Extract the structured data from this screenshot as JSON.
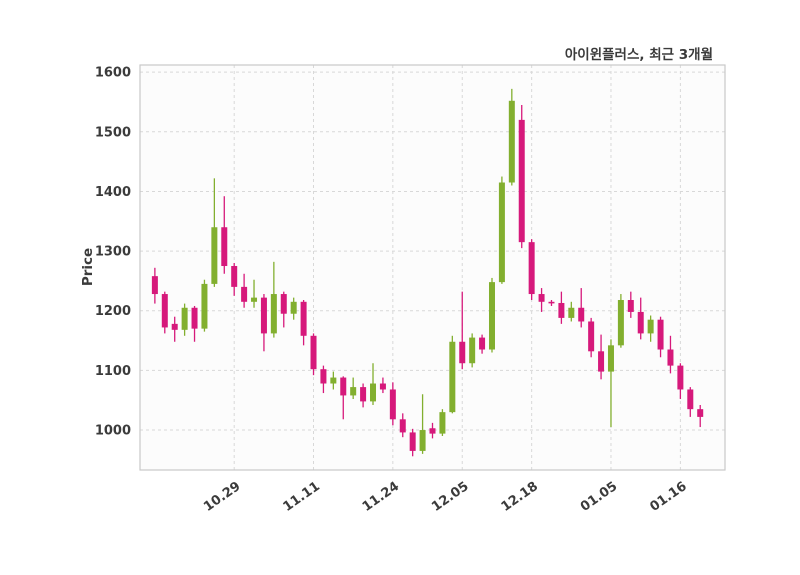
{
  "figure": {
    "title": "아이윈플러스, 최근 3개월",
    "ylabel": "Price"
  },
  "chart_data": {
    "type": "candlestick",
    "title": "아이윈플러스, 최근 3개월",
    "subtitle": "",
    "xlabel": "",
    "ylabel": "Price",
    "ylim": [
      933,
      1612
    ],
    "yticks": [
      1000,
      1100,
      1200,
      1300,
      1400,
      1500,
      1600
    ],
    "grid": "dashed",
    "legend": "none",
    "up_color": "#82af2f",
    "down_color": "#d6197b",
    "grid_color": "#d8d8d8",
    "border_color": "#c9c9c9",
    "text_color": "#3b3b3b",
    "plot_bg": "#fcfcfc",
    "xticks": [
      {
        "index": 8,
        "label": "10.29"
      },
      {
        "index": 16,
        "label": "11.11"
      },
      {
        "index": 24,
        "label": "11.24"
      },
      {
        "index": 31,
        "label": "12.05"
      },
      {
        "index": 38,
        "label": "12.18"
      },
      {
        "index": 46,
        "label": "01.05"
      },
      {
        "index": 53,
        "label": "01.16"
      }
    ],
    "candle_format": [
      "open",
      "high",
      "low",
      "close"
    ],
    "candles": [
      [
        1258,
        1272,
        1212,
        1228
      ],
      [
        1228,
        1232,
        1162,
        1172
      ],
      [
        1178,
        1190,
        1148,
        1168
      ],
      [
        1168,
        1212,
        1158,
        1205
      ],
      [
        1205,
        1208,
        1148,
        1170
      ],
      [
        1170,
        1252,
        1165,
        1245
      ],
      [
        1245,
        1422,
        1240,
        1340
      ],
      [
        1340,
        1392,
        1262,
        1275
      ],
      [
        1275,
        1280,
        1225,
        1240
      ],
      [
        1240,
        1262,
        1205,
        1215
      ],
      [
        1215,
        1252,
        1205,
        1222
      ],
      [
        1222,
        1228,
        1132,
        1162
      ],
      [
        1162,
        1282,
        1155,
        1228
      ],
      [
        1228,
        1232,
        1172,
        1195
      ],
      [
        1195,
        1222,
        1185,
        1215
      ],
      [
        1215,
        1218,
        1142,
        1158
      ],
      [
        1158,
        1162,
        1092,
        1102
      ],
      [
        1102,
        1108,
        1062,
        1078
      ],
      [
        1078,
        1098,
        1068,
        1088
      ],
      [
        1088,
        1090,
        1018,
        1058
      ],
      [
        1058,
        1088,
        1052,
        1072
      ],
      [
        1072,
        1078,
        1038,
        1048
      ],
      [
        1048,
        1112,
        1042,
        1078
      ],
      [
        1078,
        1088,
        1062,
        1068
      ],
      [
        1068,
        1080,
        1008,
        1018
      ],
      [
        1018,
        1028,
        988,
        996
      ],
      [
        996,
        1002,
        956,
        965
      ],
      [
        965,
        1060,
        960,
        1000
      ],
      [
        1003,
        1012,
        986,
        994
      ],
      [
        994,
        1035,
        990,
        1030
      ],
      [
        1030,
        1158,
        1028,
        1148
      ],
      [
        1148,
        1232,
        1102,
        1112
      ],
      [
        1112,
        1162,
        1105,
        1155
      ],
      [
        1155,
        1160,
        1128,
        1135
      ],
      [
        1135,
        1255,
        1130,
        1248
      ],
      [
        1248,
        1425,
        1245,
        1415
      ],
      [
        1415,
        1572,
        1410,
        1552
      ],
      [
        1520,
        1545,
        1305,
        1315
      ],
      [
        1315,
        1320,
        1218,
        1228
      ],
      [
        1228,
        1238,
        1198,
        1215
      ],
      [
        1215,
        1218,
        1208,
        1213
      ],
      [
        1213,
        1232,
        1178,
        1188
      ],
      [
        1188,
        1215,
        1182,
        1205
      ],
      [
        1205,
        1238,
        1172,
        1182
      ],
      [
        1182,
        1188,
        1122,
        1132
      ],
      [
        1132,
        1160,
        1085,
        1098
      ],
      [
        1098,
        1152,
        1005,
        1142
      ],
      [
        1142,
        1228,
        1138,
        1218
      ],
      [
        1218,
        1232,
        1188,
        1198
      ],
      [
        1198,
        1222,
        1152,
        1162
      ],
      [
        1162,
        1192,
        1148,
        1185
      ],
      [
        1185,
        1190,
        1122,
        1135
      ],
      [
        1135,
        1158,
        1095,
        1108
      ],
      [
        1108,
        1112,
        1052,
        1068
      ],
      [
        1068,
        1072,
        1022,
        1035
      ],
      [
        1035,
        1042,
        1005,
        1022
      ]
    ]
  }
}
